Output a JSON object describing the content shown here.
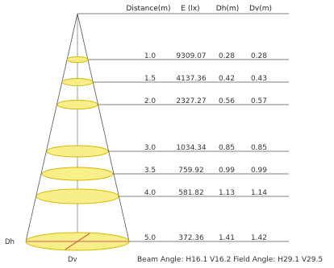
{
  "header": {
    "distance": "Distance(m)",
    "illuminance": "E (lx)",
    "dh": "Dh(m)",
    "dv": "Dv(m)"
  },
  "rows": [
    {
      "distance": "1.0",
      "e": "9309.07",
      "dh": "0.28",
      "dv": "0.28"
    },
    {
      "distance": "1.5",
      "e": "4137.36",
      "dh": "0.42",
      "dv": "0.43"
    },
    {
      "distance": "2.0",
      "e": "2327.27",
      "dh": "0.56",
      "dv": "0.57"
    },
    {
      "distance": "3.0",
      "e": "1034.34",
      "dh": "0.85",
      "dv": "0.85"
    },
    {
      "distance": "3.5",
      "e": "759.92",
      "dh": "0.99",
      "dv": "0.99"
    },
    {
      "distance": "4.0",
      "e": "581.82",
      "dh": "1.13",
      "dv": "1.14"
    },
    {
      "distance": "5.0",
      "e": "372.36",
      "dh": "1.41",
      "dv": "1.42"
    }
  ],
  "labels": {
    "dh": "Dh",
    "dv": "Dv"
  },
  "footer": "Beam Angle: H16.1 V16.2  Field Angle: H29.1 V29.5",
  "colors": {
    "ellipse_fill": "#f8ef8a",
    "ellipse_stroke": "#d4b800",
    "line": "#555555",
    "diameter_line": "#cc3333"
  }
}
